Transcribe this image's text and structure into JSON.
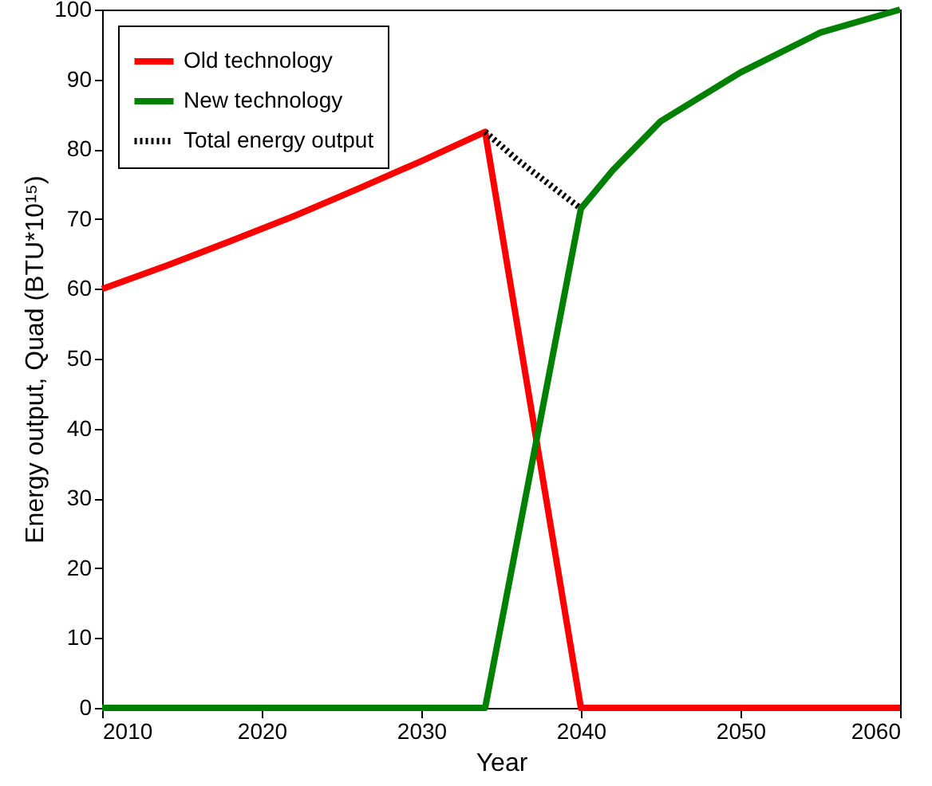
{
  "chart_data": {
    "type": "line",
    "xlabel": "Year",
    "ylabel": "Energy output, Quad (BTU*10¹⁵)",
    "xlim": [
      2010,
      2060
    ],
    "xticks": [
      2010,
      2020,
      2030,
      2040,
      2050,
      2060
    ],
    "ylim": [
      0,
      100
    ],
    "yticks": [
      0,
      10,
      20,
      30,
      40,
      50,
      60,
      70,
      80,
      90,
      100
    ],
    "grid": false,
    "legend": "top left",
    "series": [
      {
        "name": "Old technology",
        "color": "#ff0000",
        "line_style": "solid",
        "x": [
          2010,
          2014,
          2018,
          2022,
          2026,
          2030,
          2034,
          2040,
          2060
        ],
        "values": [
          60,
          63.3,
          66.8,
          70.4,
          74.3,
          78.3,
          82.5,
          0,
          0
        ]
      },
      {
        "name": "New technology",
        "color": "#008000",
        "line_style": "solid",
        "x": [
          2010,
          2034,
          2040,
          2042,
          2045,
          2050,
          2055,
          2060
        ],
        "values": [
          0,
          0,
          71.5,
          77,
          84,
          91,
          96.7,
          100
        ]
      },
      {
        "name": "Total energy output",
        "color": "#000000",
        "line_style": "dotted",
        "x": [
          2034,
          2036,
          2038,
          2040
        ],
        "values": [
          82.5,
          78.5,
          75,
          71.5
        ]
      }
    ]
  }
}
